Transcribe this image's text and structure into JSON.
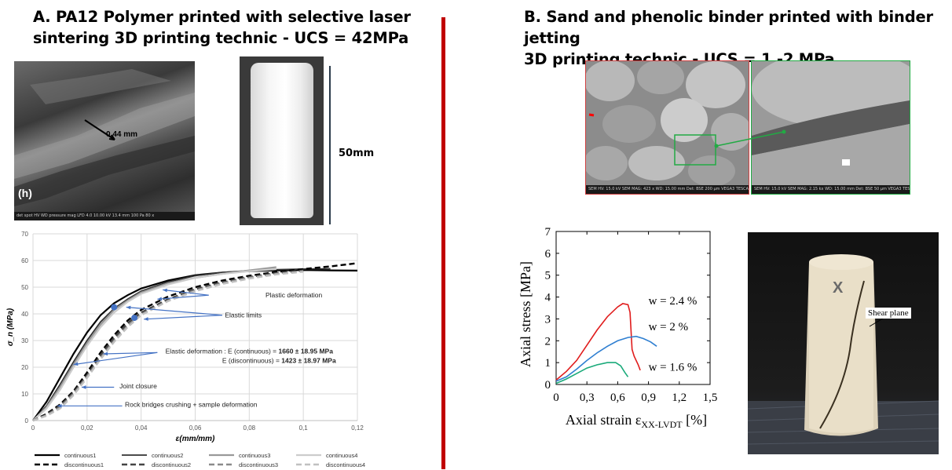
{
  "panel_a": {
    "title_line1": "A. PA12 Polymer printed with selective laser",
    "title_line2": "sintering 3D printing technic - UCS = 42MPa",
    "sem_label_h": "(h)",
    "sem_measure": "0.44 mm",
    "sample_height": "50mm",
    "sem_bar_text": "det  spot  HV  WD  pressure  mag  LFD 4.0 10.00 kV 13.4 mm 100 Pa 80 x"
  },
  "panel_b": {
    "title_line1": "B. Sand and phenolic binder printed with binder jetting",
    "title_line2": "3D printing technic - UCS = 1 -2 MPa",
    "sem_left_bar": "SEM HV: 15.0 kV   SEM MAG: 423 x   WD: 15.00 mm   Det: BSE   200 µm   VEGA3 TESCAN",
    "sem_right_bar": "SEM HV: 15.0 kV   SEM MAG: 2.15 kx   WD: 15.00 mm   Det: BSE   50 µm   VEGA3 TESCAN",
    "shear_label": "Shear plane",
    "sample_mark": "X"
  },
  "chart_data": [
    {
      "type": "line",
      "xlabel": "ε(mm/mm)",
      "ylabel": "σ_n (MPa)",
      "xlim": [
        0,
        0.12
      ],
      "ylim": [
        0,
        70
      ],
      "xticks": [
        "0",
        "0,02",
        "0,04",
        "0,06",
        "0,08",
        "0,1",
        "0,12"
      ],
      "yticks": [
        "0",
        "10",
        "20",
        "30",
        "40",
        "50",
        "60",
        "70"
      ],
      "grid": true,
      "legend_position": "bottom",
      "series": [
        {
          "name": "continuous1",
          "color": "#000000",
          "dash": "solid",
          "width": 2.2,
          "x": [
            0,
            0.005,
            0.01,
            0.015,
            0.02,
            0.025,
            0.03,
            0.035,
            0.04,
            0.05,
            0.06,
            0.07,
            0.08,
            0.09,
            0.1,
            0.11,
            0.12
          ],
          "y": [
            0,
            7,
            16,
            25,
            33,
            39.5,
            44,
            47,
            49.5,
            52.5,
            54.5,
            55.5,
            56,
            56.3,
            56.4,
            56.3,
            56.2
          ]
        },
        {
          "name": "continuous2",
          "color": "#333333",
          "dash": "solid",
          "width": 1.8,
          "x": [
            0,
            0.005,
            0.01,
            0.015,
            0.02,
            0.025,
            0.03,
            0.035,
            0.04,
            0.05,
            0.06,
            0.07,
            0.08,
            0.09,
            0.1,
            0.11
          ],
          "y": [
            0,
            5.5,
            13.5,
            22,
            30,
            37,
            42,
            45.5,
            48.5,
            52,
            54.3,
            55.5,
            56.2,
            56.6,
            56.8,
            56.9
          ]
        },
        {
          "name": "continuous3",
          "color": "#999999",
          "dash": "solid",
          "width": 2.2,
          "x": [
            0,
            0.005,
            0.01,
            0.015,
            0.02,
            0.025,
            0.03,
            0.035,
            0.04,
            0.05,
            0.06,
            0.07,
            0.08,
            0.09
          ],
          "y": [
            0,
            5,
            12.5,
            21,
            29,
            36,
            41.5,
            45,
            48,
            51.5,
            53.5,
            55,
            56.3,
            57.5
          ]
        },
        {
          "name": "continuous4",
          "color": "#cccccc",
          "dash": "solid",
          "width": 2.2,
          "x": [
            0,
            0.005,
            0.01,
            0.015,
            0.02,
            0.025,
            0.03,
            0.035,
            0.04,
            0.05,
            0.06,
            0.07,
            0.08,
            0.09
          ],
          "y": [
            0,
            4.5,
            11.5,
            20,
            28,
            35,
            40.5,
            44.5,
            47.5,
            51,
            53.5,
            55,
            56,
            56.8
          ]
        },
        {
          "name": "discontinuous1",
          "color": "#000000",
          "dash": "dashed",
          "width": 2.4,
          "x": [
            0,
            0.005,
            0.01,
            0.015,
            0.02,
            0.025,
            0.03,
            0.035,
            0.04,
            0.05,
            0.06,
            0.07,
            0.08,
            0.09,
            0.1,
            0.11,
            0.12
          ],
          "y": [
            0,
            2.5,
            6,
            11,
            18,
            25.5,
            32,
            37.5,
            41.5,
            46.5,
            50,
            52.5,
            54.3,
            55.7,
            56.8,
            57.8,
            59
          ]
        },
        {
          "name": "discontinuous2",
          "color": "#444444",
          "dash": "dashed",
          "width": 2.4,
          "x": [
            0,
            0.005,
            0.01,
            0.015,
            0.02,
            0.025,
            0.03,
            0.035,
            0.04,
            0.05,
            0.06,
            0.07,
            0.08,
            0.09,
            0.1
          ],
          "y": [
            0,
            2.2,
            5.5,
            10.5,
            17,
            24.5,
            31,
            36.5,
            40.5,
            45.5,
            49.2,
            51.8,
            53.8,
            55.3,
            56.3
          ]
        },
        {
          "name": "discontinuous3",
          "color": "#8a8a8a",
          "dash": "dashed",
          "width": 2.4,
          "x": [
            0,
            0.005,
            0.01,
            0.015,
            0.02,
            0.025,
            0.03,
            0.035,
            0.04,
            0.05,
            0.06,
            0.07,
            0.08,
            0.09,
            0.1
          ],
          "y": [
            0,
            2,
            5,
            10,
            16.5,
            23.5,
            30,
            35.5,
            39.8,
            45,
            48.8,
            51.5,
            53.5,
            55,
            56
          ]
        },
        {
          "name": "discontinuous4",
          "color": "#c0c0c0",
          "dash": "dashed",
          "width": 2.4,
          "x": [
            0,
            0.005,
            0.01,
            0.015,
            0.02,
            0.025,
            0.03,
            0.035,
            0.04,
            0.05,
            0.06,
            0.07,
            0.08,
            0.09,
            0.1
          ],
          "y": [
            0,
            1.8,
            4.5,
            9.5,
            16,
            23,
            29.5,
            35,
            39.5,
            44.8,
            48.5,
            51.2,
            53.2,
            54.8,
            55.8
          ]
        }
      ],
      "points": [
        {
          "x": 0.03,
          "y": 42.5,
          "color": "#4472c4"
        },
        {
          "x": 0.0375,
          "y": 38.5,
          "color": "#4472c4"
        }
      ],
      "annotations": [
        {
          "text": "Plastic deformation",
          "x": 0.086,
          "y": 47,
          "arrow_from": [
            0.065,
            47
          ],
          "arrows_to": [
            [
              0.048,
              49
            ],
            [
              0.046,
              45.5
            ]
          ]
        },
        {
          "text": "Elastic limits",
          "x": 0.071,
          "y": 39.5,
          "arrow_from": [
            0.07,
            39.5
          ],
          "arrows_to": [
            [
              0.0345,
              42.5
            ],
            [
              0.041,
              38
            ]
          ]
        },
        {
          "text": "Elastic deformation : E (continuous) = ",
          "bold_part": "1660 ± 18.95 MPa",
          "x": 0.049,
          "y": 26,
          "arrow_from": [
            0.046,
            25.5
          ],
          "arrows_to": [
            [
              0.026,
              25
            ],
            [
              0.015,
              21
            ]
          ]
        },
        {
          "text": "E (discontinuous) = ",
          "bold_part": "1423 ± 18.97 MPa",
          "x": 0.07,
          "y": 22.5
        },
        {
          "text": "Joint closure",
          "x": 0.032,
          "y": 13,
          "arrow_from": [
            0.03,
            12.5
          ],
          "arrows_to": [
            [
              0.018,
              12.5
            ]
          ]
        },
        {
          "text": "Rock bridges crushing + sample deformation",
          "x": 0.034,
          "y": 6,
          "arrow_from": [
            0.033,
            5.5
          ],
          "arrows_to": [
            [
              0.009,
              5.5
            ]
          ]
        }
      ]
    },
    {
      "type": "line",
      "xlabel": "Axial strain ε",
      "xlabel_sub": "XX-LVDT",
      "xlabel_unit": " [%]",
      "ylabel": "Axial stress [MPa]",
      "xlim": [
        0,
        1.5
      ],
      "ylim": [
        0,
        7
      ],
      "xticks": [
        "0",
        "0,3",
        "0,6",
        "0,9",
        "1,2",
        "1,5"
      ],
      "yticks": [
        "0",
        "1",
        "2",
        "3",
        "4",
        "5",
        "6",
        "7"
      ],
      "grid": false,
      "series": [
        {
          "name": "w = 2.4 %",
          "color": "#e01b1b",
          "x": [
            0,
            0.1,
            0.2,
            0.3,
            0.4,
            0.5,
            0.6,
            0.65,
            0.7,
            0.72,
            0.74,
            0.76,
            0.78,
            0.8,
            0.82
          ],
          "y": [
            0.2,
            0.6,
            1.1,
            1.8,
            2.5,
            3.1,
            3.55,
            3.7,
            3.65,
            3.3,
            1.6,
            1.3,
            1.1,
            0.9,
            0.65
          ]
        },
        {
          "name": "w = 2 %",
          "color": "#2f7fd1",
          "x": [
            0,
            0.1,
            0.2,
            0.3,
            0.4,
            0.5,
            0.6,
            0.7,
            0.78,
            0.85,
            0.92,
            0.98
          ],
          "y": [
            0.15,
            0.35,
            0.7,
            1.1,
            1.45,
            1.75,
            2.0,
            2.15,
            2.2,
            2.1,
            1.95,
            1.75
          ]
        },
        {
          "name": "w = 1.6 %",
          "color": "#1aaa7a",
          "x": [
            0,
            0.1,
            0.2,
            0.3,
            0.4,
            0.5,
            0.58,
            0.63,
            0.67,
            0.7
          ],
          "y": [
            0.05,
            0.25,
            0.5,
            0.75,
            0.9,
            1.0,
            1.0,
            0.85,
            0.55,
            0.35
          ]
        }
      ],
      "labels": [
        {
          "text": "w = 2.4 %",
          "x": 0.9,
          "y": 3.85
        },
        {
          "text": "w = 2 %",
          "x": 0.9,
          "y": 2.65
        },
        {
          "text": "w = 1.6 %",
          "x": 0.9,
          "y": 0.8
        }
      ]
    }
  ]
}
